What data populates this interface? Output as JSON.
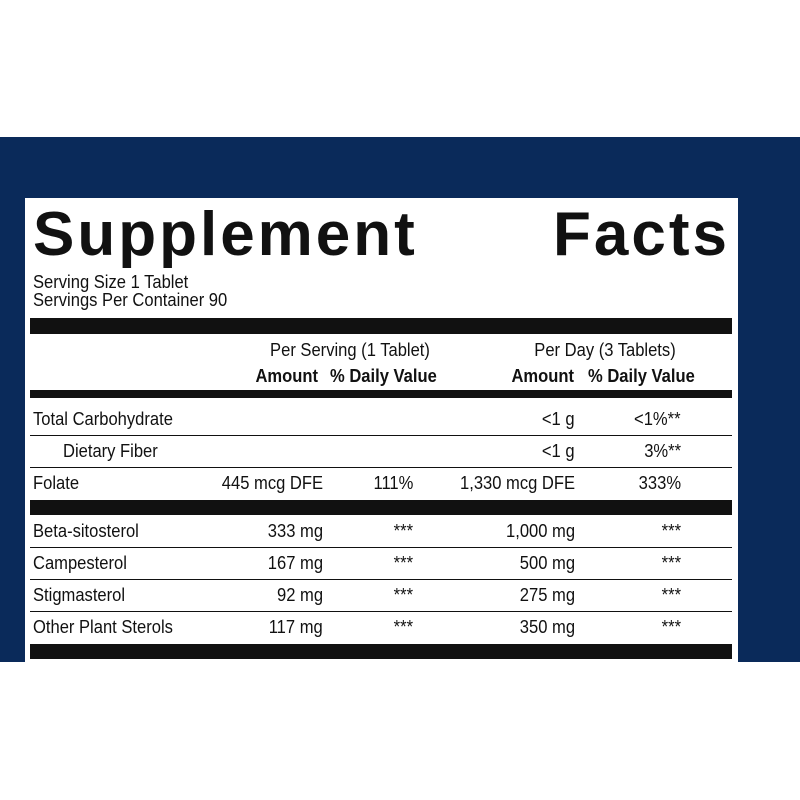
{
  "title": "Supplement Facts",
  "serving_size": "Serving Size 1 Tablet",
  "servings_per_container": "Servings Per Container 90",
  "column_groups": [
    "Per Serving (1 Tablet)",
    "Per Day (3 Tablets)"
  ],
  "column_headers": [
    "Amount",
    "% Daily Value",
    "Amount",
    "% Daily Value"
  ],
  "sections": [
    {
      "rows": [
        {
          "label": "Total Carbohydrate",
          "cells": [
            null,
            null,
            "<1 g",
            "<1%**"
          ]
        },
        {
          "label": "Dietary Fiber",
          "indent": true,
          "cells": [
            null,
            null,
            "<1 g",
            "3%**"
          ]
        },
        {
          "label": "Folate",
          "cells": [
            "445 mcg DFE",
            "111%",
            "1,330 mcg DFE",
            "333%"
          ]
        }
      ]
    },
    {
      "rows": [
        {
          "label": "Beta-sitosterol",
          "cells": [
            "333 mg",
            "***",
            "1,000 mg",
            "***"
          ]
        },
        {
          "label": "Campesterol",
          "cells": [
            "167 mg",
            "***",
            "500 mg",
            "***"
          ]
        },
        {
          "label": "Stigmasterol",
          "cells": [
            "92 mg",
            "***",
            "275 mg",
            "***"
          ]
        },
        {
          "label": "Other Plant Sterols",
          "cells": [
            "117 mg",
            "***",
            "350 mg",
            "***"
          ]
        }
      ]
    }
  ]
}
